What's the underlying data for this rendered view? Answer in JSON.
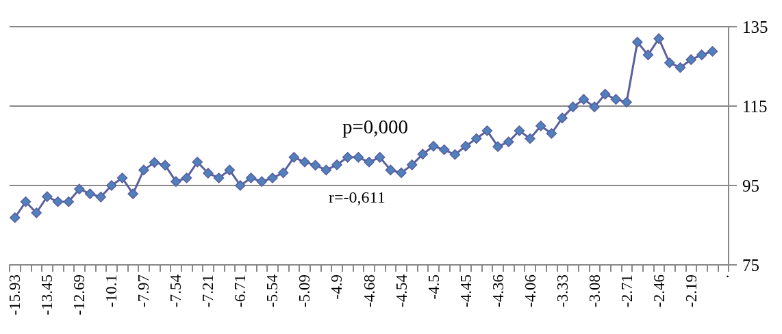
{
  "chart_data": {
    "type": "line",
    "categories": [
      "-15.93",
      null,
      null,
      "-13.45",
      null,
      null,
      "-12.69",
      null,
      null,
      "-10.1",
      null,
      null,
      "-7.97",
      null,
      null,
      "-7.54",
      null,
      null,
      "-7.21",
      null,
      null,
      "-6.71",
      null,
      null,
      "-5.54",
      null,
      null,
      "-5.09",
      null,
      null,
      "-4.9",
      null,
      null,
      "-4.68",
      null,
      null,
      "-4.54",
      null,
      null,
      "-4.5",
      null,
      null,
      "-4.45",
      null,
      null,
      "-4.36",
      null,
      null,
      "-4.06",
      null,
      null,
      "-3.33",
      null,
      null,
      "-3.08",
      null,
      null,
      "-2.71",
      null,
      null,
      "-2.46",
      null,
      null,
      "-2.19",
      null,
      null,
      "."
    ],
    "series": [
      {
        "color": "#4f81bd",
        "values": [
          86.9,
          90.9,
          88.1,
          92.2,
          90.9,
          90.9,
          94.1,
          92.9,
          92.1,
          95.0,
          96.9,
          92.9,
          98.9,
          100.8,
          100.1,
          96.0,
          96.9,
          100.9,
          98.1,
          96.9,
          98.9,
          95.0,
          96.9,
          96.0,
          96.9,
          98.2,
          102.1,
          100.9,
          100.1,
          98.9,
          100.2,
          102.1,
          102.1,
          100.9,
          102.1,
          98.9,
          98.2,
          100.2,
          102.9,
          104.9,
          104.0,
          102.8,
          104.9,
          106.8,
          108.8,
          104.8,
          106.0,
          108.8,
          106.8,
          110.0,
          108.1,
          112.0,
          114.8,
          116.7,
          114.8,
          118.0,
          116.7,
          116.0,
          131.1,
          127.9,
          132.0,
          125.9,
          124.7,
          126.7,
          127.9,
          128.8,
          null
        ]
      }
    ],
    "ylim": [
      75,
      135
    ],
    "yticks": [
      75,
      95,
      115,
      135
    ],
    "grid": "y",
    "marker": "diamond",
    "line_style": "solid",
    "annotations": [
      "p=0,000",
      "r=-0,611"
    ]
  }
}
